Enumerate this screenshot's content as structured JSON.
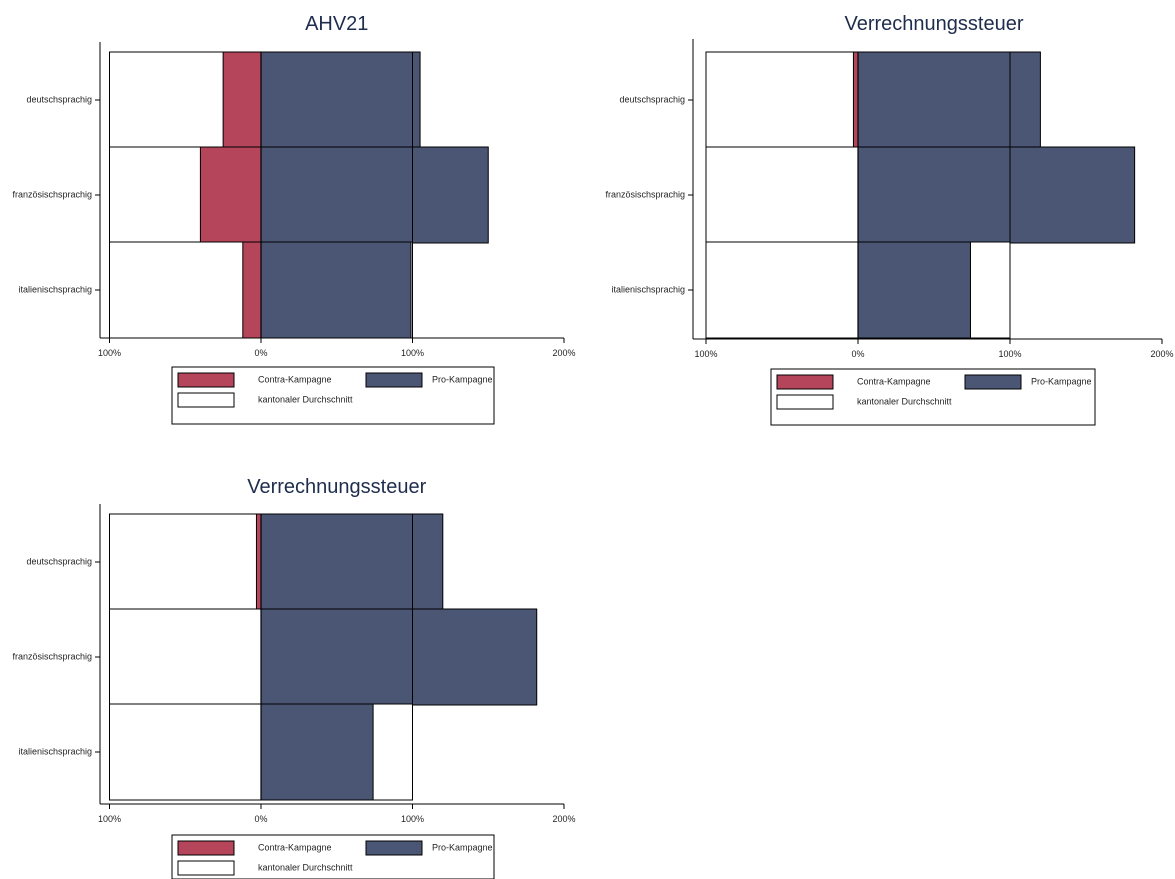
{
  "colors": {
    "contra": "#b5455a",
    "pro": "#4a5673",
    "average": "#ffffff",
    "title": "#1f2d4d"
  },
  "legend": {
    "contra": "Contra-Kampagne",
    "pro": "Pro-Kampagne",
    "average": "kantonaler Durchschnitt"
  },
  "chart_data": [
    {
      "type": "bar",
      "orientation": "horizontal",
      "title": "AHV21",
      "categories": [
        "deutschsprachig",
        "französischsprachig",
        "italienischsprachig"
      ],
      "x_ticks": [
        "100%",
        "0%",
        "100%",
        "200%"
      ],
      "xlim": [
        -100,
        200
      ],
      "series": [
        {
          "name": "Contra-Kampagne",
          "values": [
            -25,
            -40,
            -12
          ]
        },
        {
          "name": "Pro-Kampagne",
          "values": [
            105,
            150,
            99
          ]
        },
        {
          "name": "kantonaler Durchschnitt",
          "values": [
            [
              -100,
              100
            ],
            [
              -100,
              100
            ],
            [
              -100,
              100
            ]
          ]
        }
      ],
      "legend_position": "bottom"
    },
    {
      "type": "bar",
      "orientation": "horizontal",
      "title": "Verrechnungssteuer",
      "categories": [
        "deutschsprachig",
        "französischsprachig",
        "italienischsprachig"
      ],
      "x_ticks": [
        "100%",
        "0%",
        "100%",
        "200%"
      ],
      "xlim": [
        -100,
        200
      ],
      "series": [
        {
          "name": "Contra-Kampagne",
          "values": [
            -3,
            0,
            0
          ]
        },
        {
          "name": "Pro-Kampagne",
          "values": [
            120,
            182,
            74
          ]
        },
        {
          "name": "kantonaler Durchschnitt",
          "values": [
            [
              -100,
              100
            ],
            [
              -100,
              100
            ],
            [
              -100,
              100
            ]
          ]
        }
      ],
      "legend_position": "bottom"
    },
    {
      "type": "bar",
      "orientation": "horizontal",
      "title": "Verrechnungssteuer",
      "categories": [
        "deutschsprachig",
        "französischsprachig",
        "italienischsprachig"
      ],
      "x_ticks": [
        "100%",
        "0%",
        "100%",
        "200%"
      ],
      "xlim": [
        -100,
        200
      ],
      "series": [
        {
          "name": "Contra-Kampagne",
          "values": [
            -3,
            0,
            0
          ]
        },
        {
          "name": "Pro-Kampagne",
          "values": [
            120,
            182,
            74
          ]
        },
        {
          "name": "kantonaler Durchschnitt",
          "values": [
            [
              -100,
              100
            ],
            [
              -100,
              100
            ],
            [
              -100,
              100
            ]
          ]
        }
      ],
      "legend_position": "bottom"
    }
  ]
}
